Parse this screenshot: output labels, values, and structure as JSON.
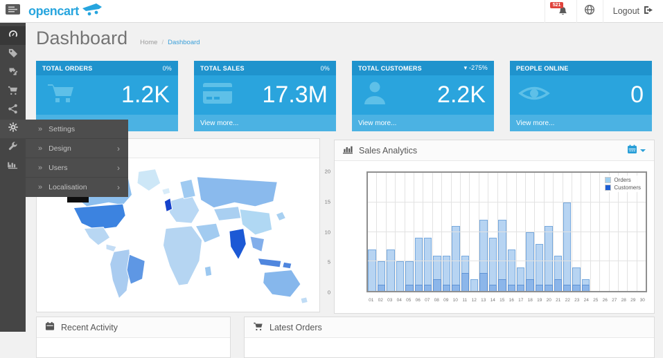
{
  "topbar": {
    "logo_text": "opencart",
    "notification_count": "521",
    "logout_label": "Logout"
  },
  "page": {
    "title": "Dashboard",
    "breadcrumb": {
      "home": "Home",
      "separator": "/",
      "current": "Dashboard"
    }
  },
  "sidebar": {
    "items": [
      {
        "id": "dashboard",
        "icon": "gauge-icon",
        "state": "active"
      },
      {
        "id": "catalog",
        "icon": "tag-icon"
      },
      {
        "id": "extensions",
        "icon": "puzzle-icon"
      },
      {
        "id": "sales",
        "icon": "cart-icon"
      },
      {
        "id": "marketing",
        "icon": "share-icon"
      },
      {
        "id": "system",
        "icon": "gear-icon",
        "state": "open"
      },
      {
        "id": "tools",
        "icon": "wrench-icon"
      },
      {
        "id": "reports",
        "icon": "chart-icon"
      }
    ]
  },
  "flyout": {
    "items": [
      {
        "label": "Settings",
        "has_children": false
      },
      {
        "label": "Design",
        "has_children": true
      },
      {
        "label": "Users",
        "has_children": true
      },
      {
        "label": "Localisation",
        "has_children": true
      }
    ]
  },
  "tiles": [
    {
      "label": "TOTAL ORDERS",
      "change": "0%",
      "value": "1.2K",
      "icon": "cart-icon",
      "footer": "View more..."
    },
    {
      "label": "TOTAL SALES",
      "change": "0%",
      "value": "17.3M",
      "icon": "credit-card-icon",
      "footer": "View more..."
    },
    {
      "label": "TOTAL CUSTOMERS",
      "change": "▾ -275%",
      "value": "2.2K",
      "icon": "user-icon",
      "footer": "View more..."
    },
    {
      "label": "PEOPLE ONLINE",
      "change": "",
      "value": "0",
      "icon": "eye-icon",
      "footer": "View more..."
    }
  ],
  "panels": {
    "analytics": {
      "title": "Sales Analytics"
    },
    "recent_activity": {
      "title": "Recent Activity"
    },
    "latest_orders": {
      "title": "Latest Orders"
    }
  },
  "colors": {
    "brand_blue": "#27a5de",
    "tile_header": "#1f93cd",
    "tile_body": "#2aa4dd",
    "tile_footer": "#4bb2e3",
    "badge_red": "#e0433c",
    "sidebar_dark": "#454545"
  },
  "chart_data": {
    "type": "bar",
    "title": "Sales Analytics",
    "categories": [
      "01",
      "02",
      "03",
      "04",
      "05",
      "06",
      "07",
      "08",
      "09",
      "10",
      "11",
      "12",
      "13",
      "14",
      "15",
      "16",
      "17",
      "18",
      "19",
      "20",
      "21",
      "22",
      "23",
      "24",
      "25",
      "26",
      "27",
      "28",
      "29",
      "30"
    ],
    "series": [
      {
        "name": "Orders",
        "fill": "#b7d4f2",
        "border": "#77a9de",
        "legend_color": "#9fd0f0",
        "values": [
          7,
          5,
          7,
          5,
          5,
          9,
          9,
          6,
          6,
          11,
          6,
          2,
          12,
          9,
          12,
          7,
          4,
          10,
          8,
          11,
          6,
          15,
          4,
          2,
          0,
          0,
          0,
          0,
          0,
          0
        ]
      },
      {
        "name": "Customers",
        "fill": "#8cb6ea",
        "border": "#5e92d4",
        "legend_color": "#1d5ed4",
        "values": [
          0,
          1,
          0,
          0,
          1,
          1,
          1,
          2,
          1,
          1,
          3,
          0,
          3,
          1,
          2,
          1,
          1,
          2,
          1,
          1,
          2,
          1,
          1,
          1,
          0,
          0,
          0,
          0,
          0,
          0
        ]
      }
    ],
    "ylim": [
      0,
      20
    ],
    "yticks": [
      0,
      5,
      10,
      15,
      20
    ],
    "grid": true,
    "legend_position": "top-right"
  },
  "map_regions": {
    "greenland": "#cde7f7",
    "iceland": "#d8ecf9",
    "alaska": "#9cc7f0",
    "canada": "#8dbfee",
    "usa": "#3c83e0",
    "mexico": "#b8d7f3",
    "camerica": "#c4ddf5",
    "southam": "#aaccf0",
    "brazil": "#5e97e4",
    "europe": "#b9d8f4",
    "uk": "#1642cb",
    "scandinavia": "#9fcaf1",
    "russia": "#8abaed",
    "centralasia": "#a9cff1",
    "middleeast": "#a2cbf0",
    "africa": "#b5d5f2",
    "madagascar": "#9cc8f0",
    "india": "#1c59d5",
    "china": "#b0d8f3",
    "seasia": "#82aeea",
    "indonesia": "#4f86de",
    "japan": "#a8d0f1",
    "australia": "#86b7ec",
    "newzealand": "#c0dcf5"
  }
}
